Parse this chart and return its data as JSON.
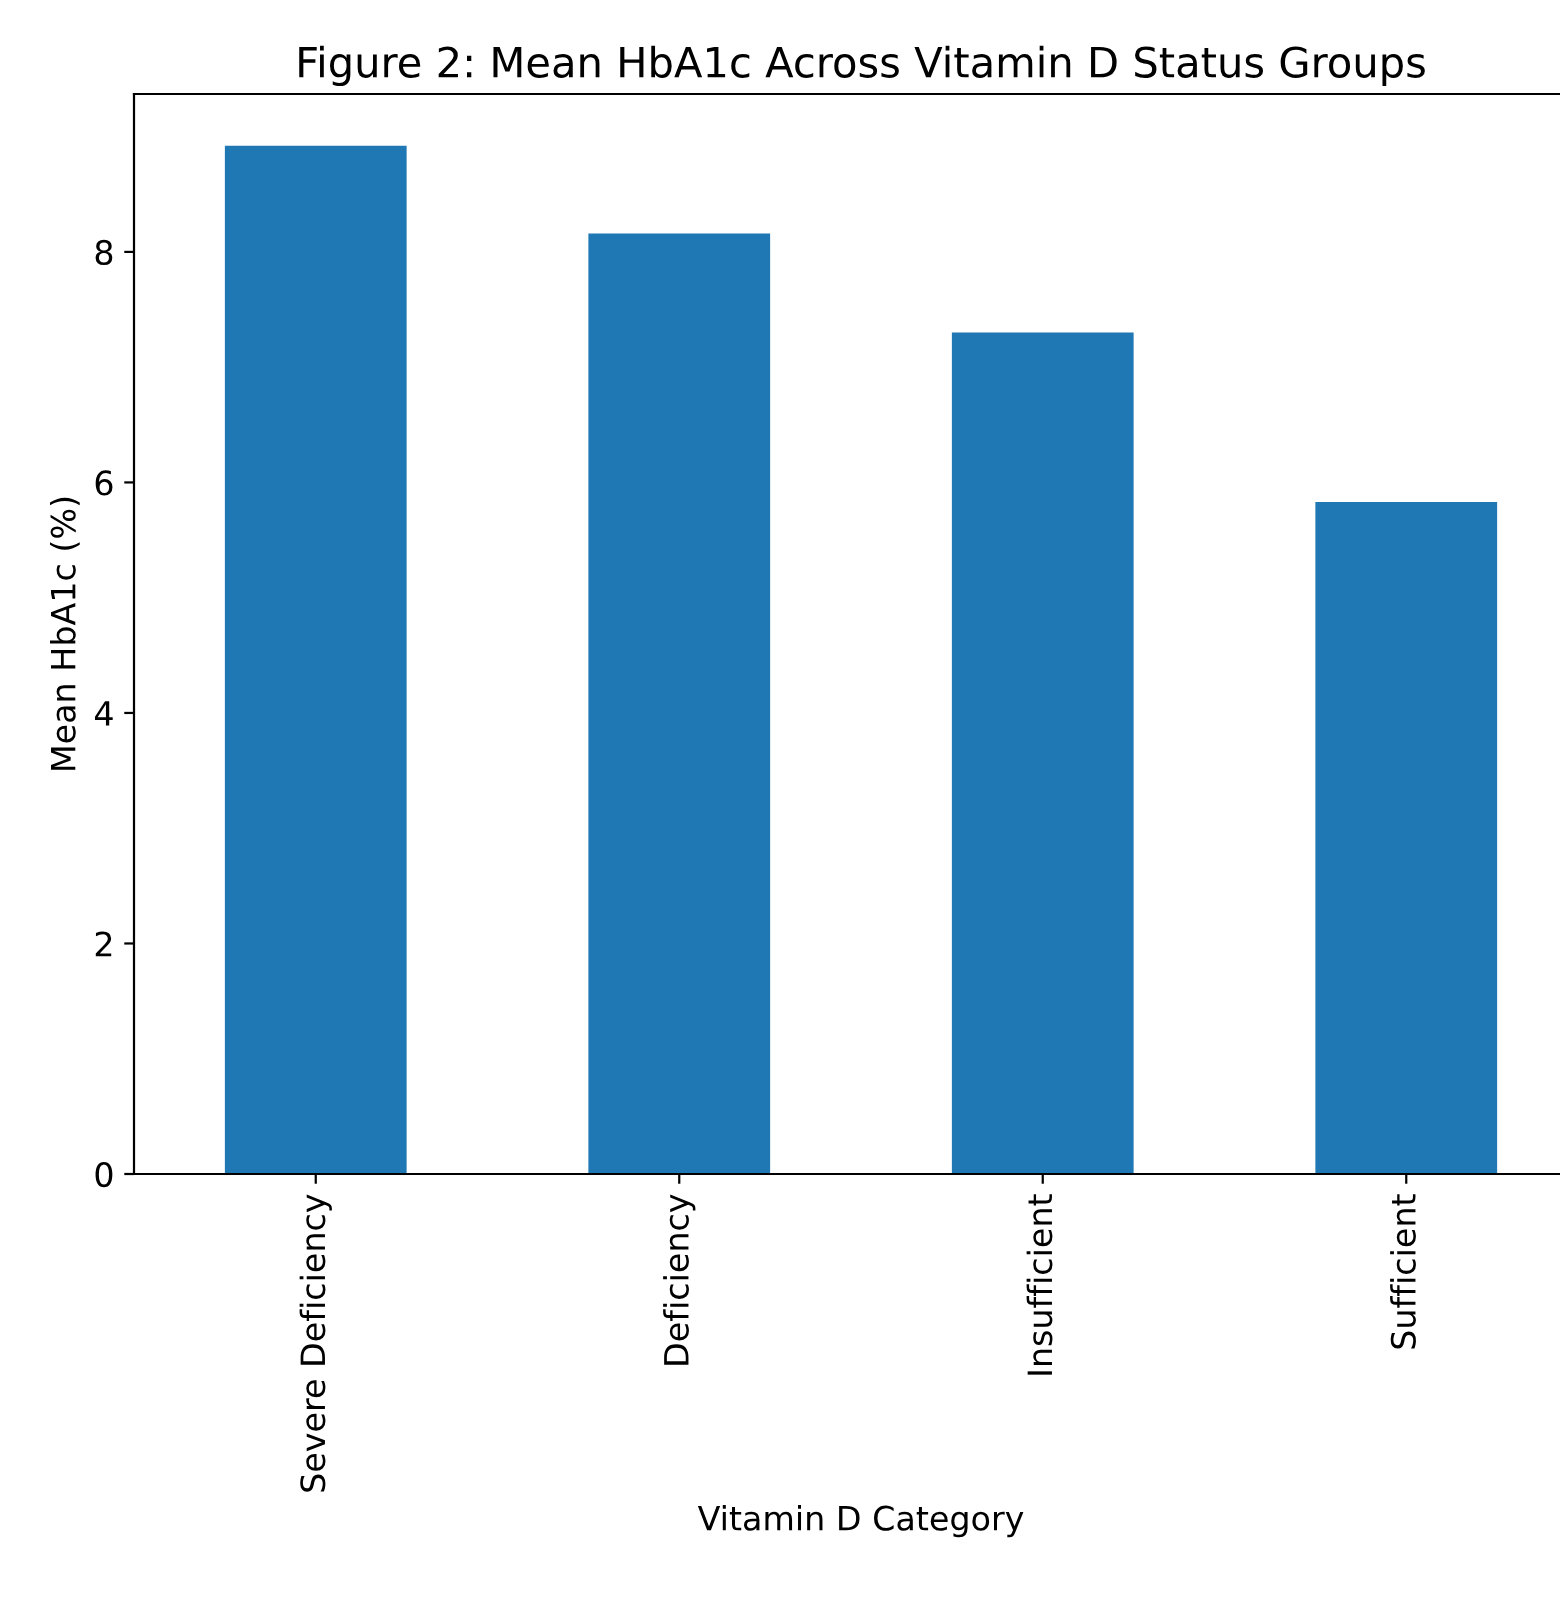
{
  "chart_data": {
    "type": "bar",
    "title": "Figure 2: Mean HbA1c Across Vitamin D Status Groups",
    "xlabel": "Vitamin D Category",
    "ylabel": "Mean HbA1c (%)",
    "categories": [
      "Severe Deficiency",
      "Deficiency",
      "Insufficient",
      "Sufficient"
    ],
    "values": [
      8.92,
      8.16,
      7.3,
      5.83
    ],
    "color": "#1f77b4",
    "ylim": [
      0,
      9.37
    ],
    "yticks": [
      0,
      2,
      4,
      6,
      8
    ],
    "grid": false,
    "legend": false
  }
}
